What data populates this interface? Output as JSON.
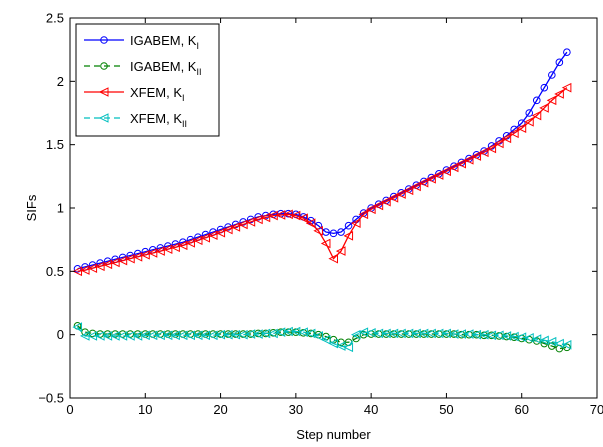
{
  "chart_data": {
    "type": "line",
    "title": "",
    "xlabel": "Step number",
    "ylabel": "SIFs",
    "xlim": [
      0,
      70
    ],
    "ylim": [
      -0.5,
      2.5
    ],
    "xticks": [
      0,
      10,
      20,
      30,
      40,
      50,
      60,
      70
    ],
    "yticks": [
      -0.5,
      0,
      0.5,
      1,
      1.5,
      2,
      2.5
    ],
    "xtick_labels": [
      "0",
      "10",
      "20",
      "30",
      "40",
      "50",
      "60",
      "70"
    ],
    "ytick_labels": [
      "−0.5",
      "0",
      "0.5",
      "1",
      "1.5",
      "2",
      "2.5"
    ],
    "grid": false,
    "legend_position": "top-left",
    "x": [
      1,
      2,
      3,
      4,
      5,
      6,
      7,
      8,
      9,
      10,
      11,
      12,
      13,
      14,
      15,
      16,
      17,
      18,
      19,
      20,
      21,
      22,
      23,
      24,
      25,
      26,
      27,
      28,
      29,
      30,
      31,
      32,
      33,
      34,
      35,
      36,
      37,
      38,
      39,
      40,
      41,
      42,
      43,
      44,
      45,
      46,
      47,
      48,
      49,
      50,
      51,
      52,
      53,
      54,
      55,
      56,
      57,
      58,
      59,
      60,
      61,
      62,
      63,
      64,
      65,
      66
    ],
    "series": [
      {
        "name": "IGABEM, K",
        "subscript": "I",
        "color": "#0000ff",
        "line_style": "solid",
        "marker": "circle",
        "values": [
          0.52,
          0.535,
          0.55,
          0.565,
          0.58,
          0.595,
          0.61,
          0.625,
          0.64,
          0.655,
          0.67,
          0.685,
          0.7,
          0.715,
          0.73,
          0.75,
          0.77,
          0.79,
          0.81,
          0.83,
          0.85,
          0.87,
          0.89,
          0.91,
          0.93,
          0.94,
          0.95,
          0.955,
          0.955,
          0.95,
          0.93,
          0.9,
          0.86,
          0.81,
          0.8,
          0.81,
          0.86,
          0.91,
          0.96,
          1.0,
          1.03,
          1.06,
          1.09,
          1.12,
          1.15,
          1.18,
          1.21,
          1.24,
          1.27,
          1.3,
          1.33,
          1.36,
          1.39,
          1.42,
          1.45,
          1.49,
          1.53,
          1.57,
          1.62,
          1.67,
          1.75,
          1.85,
          1.95,
          2.05,
          2.15,
          2.23
        ]
      },
      {
        "name": "IGABEM, K",
        "subscript": "II",
        "color": "#008000",
        "line_style": "dashed",
        "marker": "circle",
        "values": [
          0.07,
          0.02,
          0.01,
          0.005,
          0.005,
          0.005,
          0.005,
          0.005,
          0.005,
          0.005,
          0.005,
          0.005,
          0.005,
          0.005,
          0.005,
          0.005,
          0.005,
          0.005,
          0.005,
          0.005,
          0.005,
          0.005,
          0.005,
          0.005,
          0.01,
          0.01,
          0.015,
          0.02,
          0.02,
          0.02,
          0.015,
          0.01,
          0.0,
          -0.015,
          -0.04,
          -0.06,
          -0.06,
          -0.03,
          0.0,
          0.005,
          0.005,
          0.005,
          0.005,
          0.005,
          0.005,
          0.005,
          0.005,
          0.005,
          0.005,
          0.005,
          0.005,
          0.0,
          0.0,
          0.0,
          -0.005,
          -0.005,
          -0.01,
          -0.015,
          -0.02,
          -0.03,
          -0.04,
          -0.05,
          -0.07,
          -0.09,
          -0.11,
          -0.1
        ]
      },
      {
        "name": "XFEM, K",
        "subscript": "I",
        "color": "#ff0000",
        "line_style": "solid",
        "marker": "triangle-left",
        "values": [
          0.5,
          0.51,
          0.525,
          0.54,
          0.555,
          0.57,
          0.585,
          0.6,
          0.615,
          0.63,
          0.645,
          0.66,
          0.675,
          0.69,
          0.705,
          0.725,
          0.745,
          0.765,
          0.785,
          0.805,
          0.83,
          0.85,
          0.87,
          0.89,
          0.91,
          0.925,
          0.94,
          0.945,
          0.95,
          0.94,
          0.92,
          0.88,
          0.82,
          0.72,
          0.6,
          0.66,
          0.78,
          0.88,
          0.95,
          0.99,
          1.02,
          1.05,
          1.08,
          1.11,
          1.14,
          1.17,
          1.2,
          1.23,
          1.26,
          1.29,
          1.32,
          1.35,
          1.38,
          1.41,
          1.44,
          1.47,
          1.51,
          1.55,
          1.59,
          1.63,
          1.68,
          1.73,
          1.79,
          1.85,
          1.9,
          1.95
        ]
      },
      {
        "name": "XFEM, K",
        "subscript": "II",
        "color": "#00bfbf",
        "line_style": "dashed",
        "marker": "triangle-left",
        "values": [
          0.06,
          -0.01,
          -0.01,
          -0.01,
          -0.01,
          -0.01,
          -0.01,
          -0.01,
          -0.01,
          -0.005,
          -0.005,
          -0.005,
          -0.005,
          -0.005,
          -0.005,
          -0.005,
          -0.005,
          -0.005,
          -0.005,
          0.0,
          0.0,
          0.0,
          0.0,
          0.005,
          0.005,
          0.01,
          0.01,
          0.02,
          0.025,
          0.025,
          0.02,
          0.01,
          -0.01,
          -0.04,
          -0.07,
          -0.09,
          -0.1,
          0.0,
          0.02,
          0.015,
          0.01,
          0.01,
          0.01,
          0.01,
          0.01,
          0.01,
          0.01,
          0.01,
          0.01,
          0.01,
          0.005,
          0.005,
          0.005,
          0.0,
          0.0,
          -0.005,
          -0.005,
          -0.01,
          -0.015,
          -0.02,
          -0.025,
          -0.035,
          -0.045,
          -0.055,
          -0.07,
          -0.08
        ]
      }
    ]
  }
}
